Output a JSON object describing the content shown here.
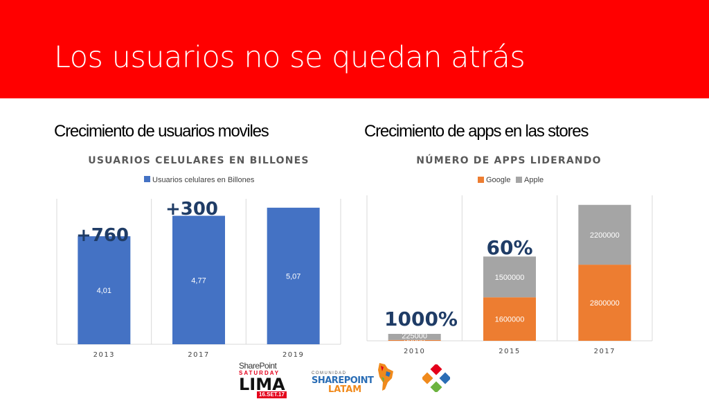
{
  "slide": {
    "title": "Los usuarios no se quedan atrás",
    "colors": {
      "banner": "#ff0000",
      "blue": "#4472c4",
      "orange": "#ed7d31",
      "gray": "#a5a5a5",
      "callout": "#1f3c66"
    }
  },
  "left": {
    "subtitle": "Crecimiento de usuarios moviles",
    "callouts": [
      "+760",
      "+300"
    ]
  },
  "right": {
    "subtitle": "Crecimiento de apps en las stores",
    "callouts": [
      "1000%",
      "60%"
    ]
  },
  "chart_data": [
    {
      "type": "bar",
      "title": "USUARIOS CELULARES EN BILLONES",
      "legend_position": "top",
      "categories": [
        "2013",
        "2017",
        "2019"
      ],
      "series": [
        {
          "name": "Usuarios celulares en Billones",
          "values": [
            4.01,
            4.77,
            5.07
          ],
          "labels": [
            "4,01",
            "4,77",
            "5,07"
          ],
          "color": "#4472c4"
        }
      ],
      "grid": "vertical"
    },
    {
      "type": "bar",
      "stacked": true,
      "title": "NÚMERO DE APPS LIDERANDO",
      "legend_position": "top",
      "categories": [
        "2010",
        "2015",
        "2017"
      ],
      "series": [
        {
          "name": "Google",
          "values": [
            30000,
            1600000,
            2800000
          ],
          "labels": [
            "30000",
            "1600000",
            "2800000"
          ],
          "color": "#ed7d31"
        },
        {
          "name": "Apple",
          "values": [
            225000,
            1500000,
            2200000
          ],
          "labels": [
            "225000",
            "1500000",
            "2200000"
          ],
          "color": "#a5a5a5"
        }
      ],
      "grid": "vertical"
    }
  ],
  "logos": {
    "sps": {
      "line1": "SharePoint",
      "line2": "SATURDAY",
      "line3": "LIMA",
      "date": "16.SET.17"
    },
    "latam": {
      "line1": "COMUNIDAD",
      "line2": "SHAREPOINT",
      "line3": "LATAM"
    },
    "icon_name": "colorful-diamond-logo-icon"
  }
}
